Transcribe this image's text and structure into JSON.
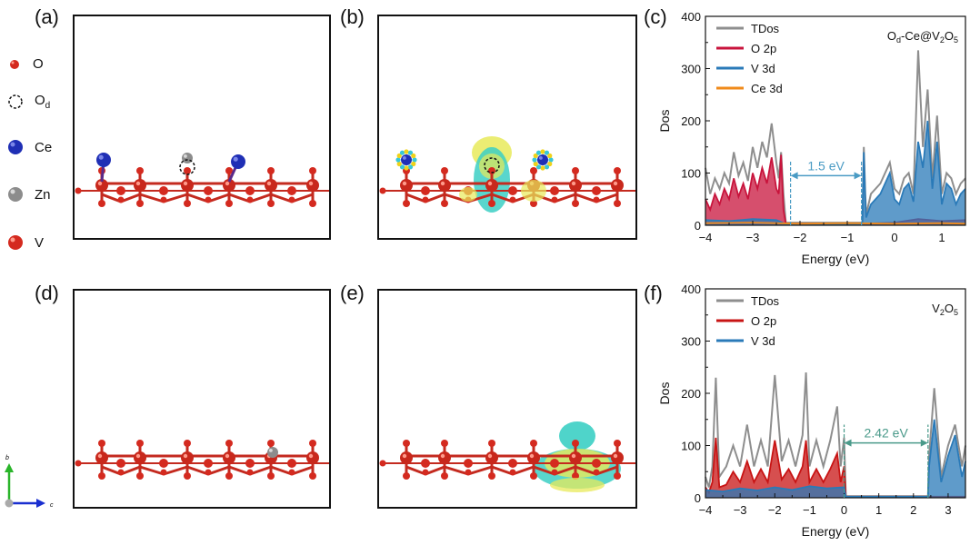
{
  "panel_labels": [
    "(a)",
    "(b)",
    "(c)",
    "(d)",
    "(e)",
    "(f)"
  ],
  "atom_legend": [
    {
      "label": "O",
      "color": "#d42a1f"
    },
    {
      "label": "O",
      "sub": "d",
      "color": "none"
    },
    {
      "label": "Ce",
      "color": "#1f2fb5"
    },
    {
      "label": "Zn",
      "color": "#8c8c8c"
    },
    {
      "label": "V",
      "color": "#d42a1f"
    }
  ],
  "axis_triad": {
    "vertical": "b",
    "horizontal": "c"
  },
  "colors": {
    "tdos": "#8e8e8e",
    "o2p_top": "#c8143c",
    "o2p_bottom": "#c81414",
    "v3d": "#2a7ab8",
    "ce3d": "#f08a1a",
    "gap_top": "#4a9bc4",
    "gap_bottom": "#4a9a8a"
  },
  "chart_data": [
    {
      "panel": "(c)",
      "type": "line",
      "xlabel": "Energy (eV)",
      "ylabel": "Dos",
      "xlim": [
        -4,
        1.5
      ],
      "ylim": [
        0,
        400
      ],
      "xticks": [
        -4,
        -3,
        -2,
        -1,
        0,
        1
      ],
      "yticks": [
        0,
        100,
        200,
        300,
        400
      ],
      "annotation_main": "O",
      "annotation_sub1": "d",
      "annotation_mid": "-Ce@V",
      "annotation_sub2": "2",
      "annotation_o": "O",
      "annotation_sub3": "5",
      "gap_label": "1.5 eV",
      "gap_range": [
        -2.2,
        -0.7
      ],
      "legend": [
        "TDos",
        "O 2p",
        "V 3d",
        "Ce 3d"
      ],
      "series": [
        {
          "name": "TDos",
          "x": [
            -4,
            -3.9,
            -3.8,
            -3.7,
            -3.6,
            -3.5,
            -3.4,
            -3.3,
            -3.2,
            -3.1,
            -3.0,
            -2.9,
            -2.8,
            -2.7,
            -2.6,
            -2.5,
            -2.45,
            -2.4,
            -2.35,
            -2.3,
            -0.68,
            -0.65,
            -0.62,
            -0.6,
            -0.5,
            -0.3,
            -0.1,
            0.0,
            0.1,
            0.2,
            0.3,
            0.4,
            0.5,
            0.6,
            0.7,
            0.8,
            0.9,
            1.0,
            1.1,
            1.2,
            1.3,
            1.4,
            1.5
          ],
          "y": [
            110,
            60,
            90,
            70,
            100,
            80,
            140,
            95,
            120,
            85,
            150,
            110,
            160,
            130,
            195,
            120,
            90,
            140,
            60,
            5,
            5,
            150,
            60,
            20,
            60,
            80,
            120,
            70,
            60,
            90,
            100,
            60,
            335,
            150,
            260,
            90,
            210,
            60,
            100,
            90,
            60,
            80,
            90
          ]
        },
        {
          "name": "O 2p",
          "x": [
            -4,
            -3.9,
            -3.8,
            -3.7,
            -3.6,
            -3.5,
            -3.4,
            -3.3,
            -3.2,
            -3.1,
            -3.0,
            -2.9,
            -2.8,
            -2.7,
            -2.6,
            -2.5,
            -2.45,
            -2.4,
            -2.35,
            -2.3,
            -0.7,
            0.0,
            0.5,
            1.0,
            1.5
          ],
          "y": [
            50,
            30,
            60,
            40,
            70,
            50,
            90,
            55,
            80,
            50,
            100,
            70,
            110,
            80,
            130,
            70,
            60,
            135,
            30,
            3,
            3,
            5,
            12,
            8,
            10
          ]
        },
        {
          "name": "V 3d",
          "x": [
            -4,
            -3.5,
            -3.0,
            -2.5,
            -2.3,
            -0.68,
            -0.65,
            -0.62,
            -0.6,
            -0.5,
            -0.3,
            -0.1,
            0.0,
            0.1,
            0.2,
            0.3,
            0.4,
            0.5,
            0.6,
            0.7,
            0.8,
            0.9,
            1.0,
            1.1,
            1.2,
            1.3,
            1.4,
            1.5
          ],
          "y": [
            10,
            8,
            12,
            10,
            2,
            2,
            140,
            50,
            15,
            40,
            60,
            100,
            50,
            40,
            70,
            80,
            45,
            160,
            110,
            200,
            70,
            160,
            40,
            80,
            70,
            40,
            60,
            70
          ]
        },
        {
          "name": "Ce 3d",
          "x": [
            -4,
            -3,
            -2,
            -1,
            0,
            1,
            1.5
          ],
          "y": [
            4,
            5,
            3,
            4,
            3,
            4,
            3
          ]
        }
      ]
    },
    {
      "panel": "(f)",
      "type": "line",
      "xlabel": "Energy (eV)",
      "ylabel": "Dos",
      "xlim": [
        -4,
        3.5
      ],
      "ylim": [
        0,
        400
      ],
      "xticks": [
        -4,
        -3,
        -2,
        -1,
        0,
        1,
        2,
        3
      ],
      "yticks": [
        0,
        100,
        200,
        300,
        400
      ],
      "annotation_main": "V",
      "annotation_sub1": "2",
      "annotation_mid": "O",
      "annotation_sub2": "5",
      "gap_label": "2.42 eV",
      "gap_range": [
        0.0,
        2.42
      ],
      "legend": [
        "TDos",
        "O 2p",
        "V 3d"
      ],
      "series": [
        {
          "name": "TDos",
          "x": [
            -4,
            -3.9,
            -3.8,
            -3.7,
            -3.6,
            -3.4,
            -3.2,
            -3.0,
            -2.8,
            -2.6,
            -2.4,
            -2.2,
            -2.0,
            -1.8,
            -1.6,
            -1.4,
            -1.2,
            -1.1,
            -1.0,
            -0.8,
            -0.6,
            -0.4,
            -0.2,
            -0.1,
            0.0,
            0.05,
            2.42,
            2.45,
            2.6,
            2.8,
            3.0,
            3.2,
            3.4,
            3.5
          ],
          "y": [
            40,
            20,
            60,
            230,
            40,
            60,
            100,
            60,
            140,
            60,
            110,
            60,
            235,
            70,
            110,
            60,
            120,
            240,
            60,
            110,
            60,
            110,
            175,
            60,
            115,
            3,
            3,
            80,
            210,
            40,
            100,
            140,
            60,
            100
          ]
        },
        {
          "name": "O 2p",
          "x": [
            -4,
            -3.9,
            -3.8,
            -3.7,
            -3.6,
            -3.4,
            -3.2,
            -3.0,
            -2.8,
            -2.6,
            -2.4,
            -2.2,
            -2.0,
            -1.8,
            -1.6,
            -1.4,
            -1.2,
            -1.1,
            -1.0,
            -0.8,
            -0.6,
            -0.4,
            -0.2,
            -0.1,
            0.0,
            0.05,
            3.5
          ],
          "y": [
            20,
            10,
            30,
            115,
            20,
            25,
            50,
            30,
            70,
            30,
            55,
            30,
            110,
            35,
            55,
            30,
            60,
            110,
            30,
            55,
            30,
            55,
            85,
            30,
            60,
            2,
            2
          ]
        },
        {
          "name": "V 3d",
          "x": [
            -4,
            -3.5,
            -3.0,
            -2.5,
            -2.0,
            -1.5,
            -1.0,
            -0.5,
            0.0,
            0.05,
            2.42,
            2.45,
            2.6,
            2.8,
            3.0,
            3.2,
            3.4,
            3.5
          ],
          "y": [
            15,
            12,
            18,
            14,
            20,
            15,
            22,
            18,
            20,
            2,
            2,
            60,
            150,
            30,
            80,
            120,
            40,
            70
          ]
        }
      ]
    }
  ]
}
